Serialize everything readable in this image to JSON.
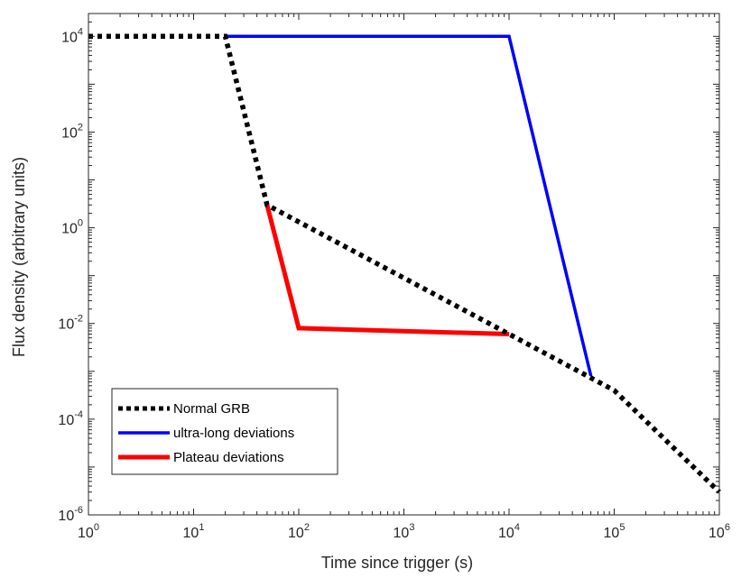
{
  "chart_data": {
    "type": "line",
    "xlabel": "Time since trigger (s)",
    "ylabel": "Flux density (arbitrary units)",
    "xscale": "log",
    "yscale": "log",
    "xlim": [
      1,
      1000000
    ],
    "ylim": [
      1e-06,
      30000
    ],
    "x_ticks": [
      {
        "value": 1,
        "base": "10",
        "exp": "0"
      },
      {
        "value": 10,
        "base": "10",
        "exp": "1"
      },
      {
        "value": 100,
        "base": "10",
        "exp": "2"
      },
      {
        "value": 1000,
        "base": "10",
        "exp": "3"
      },
      {
        "value": 10000,
        "base": "10",
        "exp": "4"
      },
      {
        "value": 100000,
        "base": "10",
        "exp": "5"
      },
      {
        "value": 1000000,
        "base": "10",
        "exp": "6"
      }
    ],
    "y_ticks": [
      {
        "value": 1e-06,
        "base": "10",
        "exp": "-6"
      },
      {
        "value": 0.0001,
        "base": "10",
        "exp": "-4"
      },
      {
        "value": 0.01,
        "base": "10",
        "exp": "-2"
      },
      {
        "value": 1,
        "base": "10",
        "exp": "0"
      },
      {
        "value": 100,
        "base": "10",
        "exp": "2"
      },
      {
        "value": 10000,
        "base": "10",
        "exp": "4"
      }
    ],
    "grid": false,
    "legend_position": "bottom-left",
    "series": [
      {
        "name": "Normal GRB",
        "color": "#000000",
        "style": "dotted",
        "x": [
          1,
          20,
          50,
          10000,
          100000,
          1000000
        ],
        "y": [
          10000,
          10000,
          3,
          0.006,
          0.0004,
          3e-06
        ]
      },
      {
        "name": "ultra-long deviations",
        "color": "#0000ff",
        "style": "solid",
        "x": [
          20,
          10000,
          60000
        ],
        "y": [
          10000,
          10000,
          0.0008
        ]
      },
      {
        "name": "Plateau deviations",
        "color": "#ff0000",
        "style": "solid",
        "x": [
          50,
          100,
          10000
        ],
        "y": [
          3,
          0.008,
          0.006
        ]
      }
    ]
  }
}
